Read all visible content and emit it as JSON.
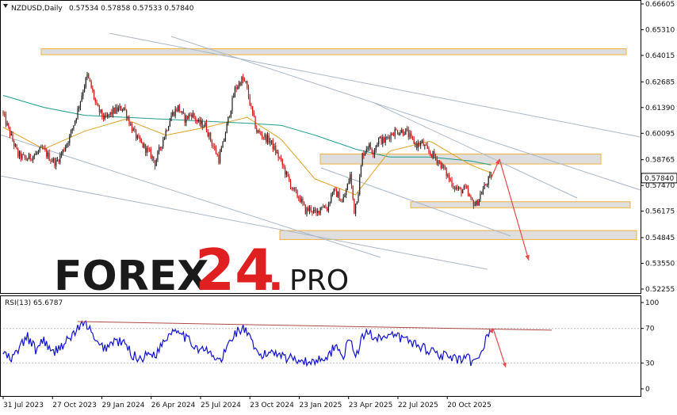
{
  "header": {
    "symbol": "NZDUSD,Daily",
    "ohlc": "0.57534 0.57858 0.57533 0.57840"
  },
  "price_tag": "0.57840",
  "logo": {
    "text_main": "FOREX",
    "text_num": "24",
    "text_dot": ".",
    "text_pro": "PRO"
  },
  "colors": {
    "bull": "#1f1f1f",
    "bear": "#d01010",
    "ma_fast": "#e0a020",
    "ma_slow": "#1a9c8c",
    "zone_fill": "#dedede",
    "zone_border": "#f0b040",
    "trend_line": "#a8b8c8",
    "arrow": "#e84848",
    "rsi": "#1010d0",
    "rsi_trend": "#b04848",
    "logo_dark": "#1a1a1a",
    "logo_red": "#e02020"
  },
  "rsi": {
    "label": "RSI(13) 65.6787",
    "period": 13,
    "current": 65.6787,
    "axis_ticks": [
      "100",
      "70",
      "30",
      "0"
    ]
  },
  "chart_data": {
    "type": "candlestick",
    "instrument": "NZDUSD",
    "timeframe": "Daily",
    "ylim": [
      0.52255,
      0.66605
    ],
    "y_ticks": [
      "0.66605",
      "0.65310",
      "0.64015",
      "0.62685",
      "0.61390",
      "0.60095",
      "0.58765",
      "0.57470",
      "0.56175",
      "0.54845",
      "0.53550",
      "0.52255"
    ],
    "x_ticks": [
      "31 Jul 2023",
      "27 Oct 2023",
      "29 Jan 2024",
      "26 Apr 2024",
      "25 Jul 2024",
      "23 Oct 2024",
      "23 Jan 2025",
      "23 Apr 2025",
      "22 Jul 2025",
      "20 Oct 2025"
    ],
    "price_path": [
      [
        0,
        0.612
      ],
      [
        6,
        0.601
      ],
      [
        12,
        0.59
      ],
      [
        18,
        0.588
      ],
      [
        24,
        0.59
      ],
      [
        30,
        0.593
      ],
      [
        36,
        0.588
      ],
      [
        40,
        0.586
      ],
      [
        45,
        0.592
      ],
      [
        50,
        0.599
      ],
      [
        55,
        0.61
      ],
      [
        60,
        0.623
      ],
      [
        63,
        0.63
      ],
      [
        66,
        0.624
      ],
      [
        70,
        0.614
      ],
      [
        76,
        0.608
      ],
      [
        82,
        0.612
      ],
      [
        90,
        0.614
      ],
      [
        95,
        0.605
      ],
      [
        100,
        0.598
      ],
      [
        105,
        0.594
      ],
      [
        110,
        0.59
      ],
      [
        113,
        0.586
      ],
      [
        118,
        0.596
      ],
      [
        125,
        0.61
      ],
      [
        130,
        0.614
      ],
      [
        135,
        0.608
      ],
      [
        140,
        0.611
      ],
      [
        145,
        0.606
      ],
      [
        150,
        0.605
      ],
      [
        155,
        0.596
      ],
      [
        160,
        0.588
      ],
      [
        163,
        0.595
      ],
      [
        167,
        0.608
      ],
      [
        172,
        0.623
      ],
      [
        177,
        0.628
      ],
      [
        180,
        0.626
      ],
      [
        184,
        0.613
      ],
      [
        188,
        0.602
      ],
      [
        192,
        0.6
      ],
      [
        198,
        0.597
      ],
      [
        205,
        0.588
      ],
      [
        210,
        0.58
      ],
      [
        215,
        0.572
      ],
      [
        220,
        0.568
      ],
      [
        224,
        0.562
      ],
      [
        228,
        0.563
      ],
      [
        232,
        0.56
      ],
      [
        236,
        0.565
      ],
      [
        240,
        0.563
      ],
      [
        244,
        0.572
      ],
      [
        248,
        0.57
      ],
      [
        251,
        0.566
      ],
      [
        254,
        0.572
      ],
      [
        257,
        0.58
      ],
      [
        260,
        0.562
      ],
      [
        263,
        0.572
      ],
      [
        266,
        0.59
      ],
      [
        270,
        0.595
      ],
      [
        274,
        0.592
      ],
      [
        278,
        0.598
      ],
      [
        282,
        0.597
      ],
      [
        286,
        0.6
      ],
      [
        290,
        0.602
      ],
      [
        294,
        0.602
      ],
      [
        298,
        0.602
      ],
      [
        302,
        0.598
      ],
      [
        306,
        0.595
      ],
      [
        310,
        0.596
      ],
      [
        314,
        0.592
      ],
      [
        318,
        0.59
      ],
      [
        322,
        0.587
      ],
      [
        326,
        0.583
      ],
      [
        330,
        0.578
      ],
      [
        334,
        0.574
      ],
      [
        338,
        0.572
      ],
      [
        342,
        0.573
      ],
      [
        346,
        0.567
      ],
      [
        350,
        0.565
      ],
      [
        353,
        0.57
      ],
      [
        356,
        0.574
      ],
      [
        360,
        0.5784
      ]
    ],
    "ma_fast": [
      [
        0,
        0.604
      ],
      [
        30,
        0.593
      ],
      [
        60,
        0.602
      ],
      [
        90,
        0.608
      ],
      [
        120,
        0.6
      ],
      [
        150,
        0.604
      ],
      [
        180,
        0.609
      ],
      [
        205,
        0.598
      ],
      [
        230,
        0.578
      ],
      [
        260,
        0.57
      ],
      [
        285,
        0.592
      ],
      [
        315,
        0.597
      ],
      [
        345,
        0.585
      ],
      [
        360,
        0.581
      ]
    ],
    "ma_slow": [
      [
        0,
        0.62
      ],
      [
        30,
        0.614
      ],
      [
        60,
        0.61
      ],
      [
        90,
        0.609
      ],
      [
        120,
        0.608
      ],
      [
        150,
        0.607
      ],
      [
        180,
        0.606
      ],
      [
        205,
        0.605
      ],
      [
        230,
        0.6
      ],
      [
        260,
        0.593
      ],
      [
        285,
        0.589
      ],
      [
        315,
        0.589
      ],
      [
        345,
        0.587
      ],
      [
        360,
        0.585
      ]
    ],
    "zones": [
      [
        0.6435,
        0.6405
      ],
      [
        0.5905,
        0.5855
      ],
      [
        0.5665,
        0.5635
      ],
      [
        0.552,
        0.5475
      ]
    ],
    "forecast_arrows": [
      [
        0.5784,
        0.588
      ],
      [
        0.588,
        0.537
      ]
    ],
    "rsi_values": [
      [
        0,
        42
      ],
      [
        6,
        33
      ],
      [
        12,
        48
      ],
      [
        18,
        60
      ],
      [
        24,
        45
      ],
      [
        30,
        58
      ],
      [
        36,
        40
      ],
      [
        40,
        47
      ],
      [
        45,
        52
      ],
      [
        50,
        60
      ],
      [
        55,
        70
      ],
      [
        60,
        75
      ],
      [
        63,
        73
      ],
      [
        66,
        60
      ],
      [
        70,
        50
      ],
      [
        76,
        48
      ],
      [
        82,
        56
      ],
      [
        90,
        52
      ],
      [
        95,
        40
      ],
      [
        100,
        35
      ],
      [
        105,
        38
      ],
      [
        110,
        42
      ],
      [
        113,
        40
      ],
      [
        118,
        55
      ],
      [
        125,
        68
      ],
      [
        130,
        70
      ],
      [
        135,
        58
      ],
      [
        140,
        52
      ],
      [
        145,
        46
      ],
      [
        150,
        44
      ],
      [
        155,
        37
      ],
      [
        160,
        32
      ],
      [
        163,
        40
      ],
      [
        167,
        55
      ],
      [
        172,
        66
      ],
      [
        177,
        70
      ],
      [
        180,
        65
      ],
      [
        184,
        50
      ],
      [
        188,
        40
      ],
      [
        192,
        38
      ],
      [
        198,
        44
      ],
      [
        205,
        41
      ],
      [
        210,
        35
      ],
      [
        215,
        36
      ],
      [
        220,
        34
      ],
      [
        224,
        30
      ],
      [
        228,
        32
      ],
      [
        232,
        33
      ],
      [
        236,
        38
      ],
      [
        240,
        36
      ],
      [
        244,
        50
      ],
      [
        248,
        45
      ],
      [
        251,
        40
      ],
      [
        254,
        50
      ],
      [
        257,
        57
      ],
      [
        260,
        35
      ],
      [
        263,
        50
      ],
      [
        266,
        62
      ],
      [
        270,
        66
      ],
      [
        274,
        60
      ],
      [
        278,
        62
      ],
      [
        282,
        58
      ],
      [
        286,
        60
      ],
      [
        290,
        62
      ],
      [
        294,
        58
      ],
      [
        298,
        57
      ],
      [
        302,
        54
      ],
      [
        306,
        50
      ],
      [
        310,
        48
      ],
      [
        314,
        45
      ],
      [
        318,
        44
      ],
      [
        322,
        40
      ],
      [
        326,
        38
      ],
      [
        330,
        36
      ],
      [
        334,
        34
      ],
      [
        338,
        32
      ],
      [
        342,
        36
      ],
      [
        346,
        30
      ],
      [
        350,
        31
      ],
      [
        353,
        45
      ],
      [
        356,
        58
      ],
      [
        360,
        65.68
      ]
    ],
    "rsi_levels": [
      70,
      30
    ]
  }
}
